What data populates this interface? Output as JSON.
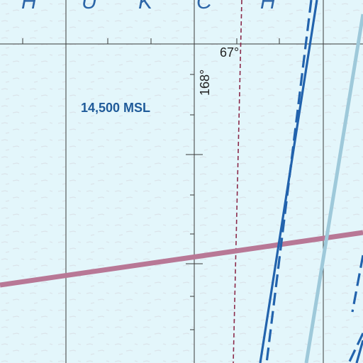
{
  "sea_name_letters": [
    "H",
    "U",
    "K",
    "C",
    "H"
  ],
  "altitude_label": "14,500 MSL",
  "latitude_label": "67°",
  "longitude_label": "168°",
  "colors": {
    "water": "#e3f6fb",
    "grid": "#3a3a3a",
    "airway": "#b87896",
    "boundary_dashed": "#2263ad",
    "boundary_light": "#9ec9da",
    "meridian_dashed": "#8b2a4a",
    "sea_text": "#2c66a8",
    "altitude_text": "#1f5b9a"
  }
}
